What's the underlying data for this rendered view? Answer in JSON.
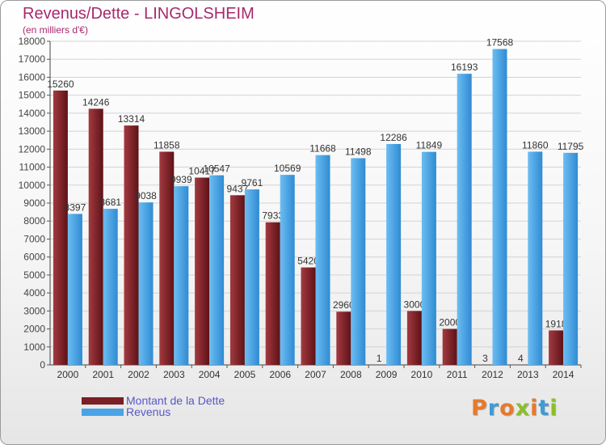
{
  "title": "Revenus/Dette - LINGOLSHEIM",
  "subtitle": "(en milliers d'€)",
  "logo": "Proxiti",
  "colors": {
    "debt": "#7a1f25",
    "revenue": "#4aa3e6",
    "title": "#a8286e",
    "legend_text": "#5858c8"
  },
  "chart_data": {
    "type": "bar",
    "categories": [
      "2000",
      "2001",
      "2002",
      "2003",
      "2004",
      "2005",
      "2006",
      "2007",
      "2008",
      "2009",
      "2010",
      "2011",
      "2012",
      "2013",
      "2014"
    ],
    "series": [
      {
        "name": "Montant de la Dette",
        "values": [
          15260,
          14246,
          13314,
          11858,
          10417,
          9437,
          7933,
          5420,
          2960,
          1,
          3000,
          2000,
          3,
          4,
          1918
        ],
        "labels": [
          "15260",
          "14246",
          "13314",
          "11858",
          "10417",
          "9437",
          "7933",
          "5420",
          "2960",
          "1",
          "3000",
          "2000",
          "3",
          "4",
          "1918"
        ]
      },
      {
        "name": "Revenus",
        "values": [
          8397,
          8681,
          9038,
          9939,
          10547,
          9761,
          10569,
          11668,
          11498,
          12286,
          11849,
          16193,
          17568,
          11860,
          11795
        ],
        "labels": [
          "8397",
          "8681",
          "9038",
          "9939",
          "10547",
          "9761",
          "10569",
          "11668",
          "11498",
          "12286",
          "11849",
          "16193",
          "17568",
          "11860",
          "11795"
        ]
      }
    ],
    "ylim": [
      0,
      18000
    ],
    "yticks": [
      0,
      1000,
      2000,
      3000,
      4000,
      5000,
      6000,
      7000,
      8000,
      9000,
      10000,
      11000,
      12000,
      13000,
      14000,
      15000,
      16000,
      17000,
      18000
    ],
    "grid": true,
    "legend_position": "bottom-left"
  }
}
